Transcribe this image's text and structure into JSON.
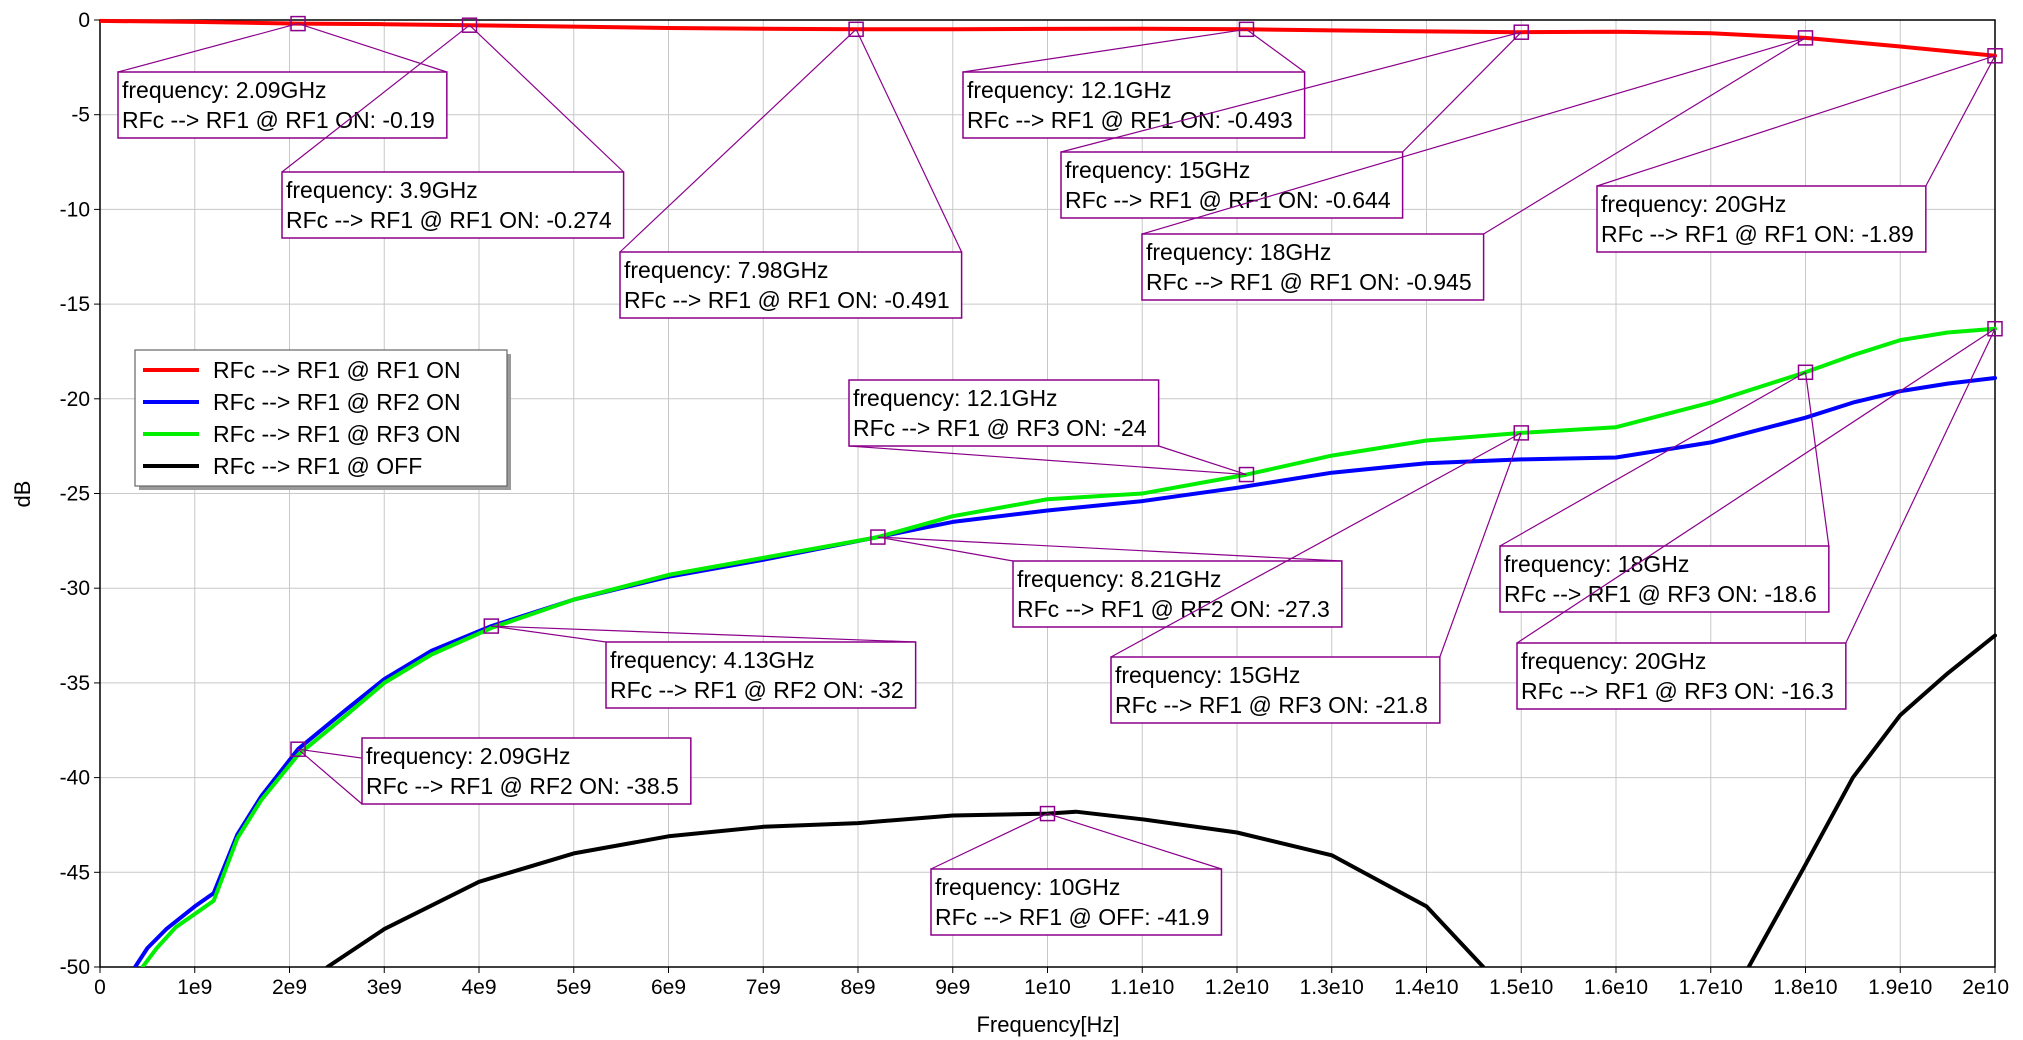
{
  "chart_data": {
    "type": "line",
    "xlabel": "Frequency[Hz]",
    "ylabel": "dB",
    "xlim": [
      0,
      20000000000
    ],
    "ylim": [
      -50,
      0
    ],
    "grid": true,
    "legend_placement": "left",
    "x_ticks": [
      {
        "value": 0,
        "label": "0"
      },
      {
        "value": 1000000000,
        "label": "1e9"
      },
      {
        "value": 2000000000,
        "label": "2e9"
      },
      {
        "value": 3000000000,
        "label": "3e9"
      },
      {
        "value": 4000000000,
        "label": "4e9"
      },
      {
        "value": 5000000000,
        "label": "5e9"
      },
      {
        "value": 6000000000,
        "label": "6e9"
      },
      {
        "value": 7000000000,
        "label": "7e9"
      },
      {
        "value": 8000000000,
        "label": "8e9"
      },
      {
        "value": 9000000000,
        "label": "9e9"
      },
      {
        "value": 10000000000,
        "label": "1e10"
      },
      {
        "value": 11000000000,
        "label": "1.1e10"
      },
      {
        "value": 12000000000,
        "label": "1.2e10"
      },
      {
        "value": 13000000000,
        "label": "1.3e10"
      },
      {
        "value": 14000000000,
        "label": "1.4e10"
      },
      {
        "value": 15000000000,
        "label": "1.5e10"
      },
      {
        "value": 16000000000,
        "label": "1.6e10"
      },
      {
        "value": 17000000000,
        "label": "1.7e10"
      },
      {
        "value": 18000000000,
        "label": "1.8e10"
      },
      {
        "value": 19000000000,
        "label": "1.9e10"
      },
      {
        "value": 20000000000,
        "label": "2e10"
      }
    ],
    "y_ticks": [
      {
        "value": 0,
        "label": "0"
      },
      {
        "value": -5,
        "label": "-5"
      },
      {
        "value": -10,
        "label": "-10"
      },
      {
        "value": -15,
        "label": "-15"
      },
      {
        "value": -20,
        "label": "-20"
      },
      {
        "value": -25,
        "label": "-25"
      },
      {
        "value": -30,
        "label": "-30"
      },
      {
        "value": -35,
        "label": "-35"
      },
      {
        "value": -40,
        "label": "-40"
      },
      {
        "value": -45,
        "label": "-45"
      },
      {
        "value": -50,
        "label": "-50"
      }
    ],
    "series": [
      {
        "name": "RFc --> RF1 @ RF1 ON",
        "color": "#ff0000",
        "points": [
          [
            0,
            -0.05
          ],
          [
            1000000000,
            -0.1
          ],
          [
            2090000000,
            -0.19
          ],
          [
            3000000000,
            -0.22
          ],
          [
            3900000000,
            -0.274
          ],
          [
            5000000000,
            -0.35
          ],
          [
            6000000000,
            -0.42
          ],
          [
            7000000000,
            -0.46
          ],
          [
            7980000000,
            -0.491
          ],
          [
            9000000000,
            -0.49
          ],
          [
            10000000000,
            -0.47
          ],
          [
            11000000000,
            -0.46
          ],
          [
            12100000000,
            -0.493
          ],
          [
            13000000000,
            -0.55
          ],
          [
            14000000000,
            -0.6
          ],
          [
            15000000000,
            -0.644
          ],
          [
            16000000000,
            -0.62
          ],
          [
            17000000000,
            -0.7
          ],
          [
            18000000000,
            -0.945
          ],
          [
            19000000000,
            -1.4
          ],
          [
            20000000000,
            -1.89
          ]
        ]
      },
      {
        "name": "RFc --> RF1 @ RF2 ON",
        "color": "#0000ff",
        "points": [
          [
            370000000,
            -50
          ],
          [
            500000000,
            -49
          ],
          [
            700000000,
            -48
          ],
          [
            1000000000,
            -46.8
          ],
          [
            1200000000,
            -46.1
          ],
          [
            1450000000,
            -43
          ],
          [
            1700000000,
            -41
          ],
          [
            2090000000,
            -38.5
          ],
          [
            2600000000,
            -36.4
          ],
          [
            3000000000,
            -34.8
          ],
          [
            3500000000,
            -33.3
          ],
          [
            4130000000,
            -32
          ],
          [
            5000000000,
            -30.6
          ],
          [
            6000000000,
            -29.4
          ],
          [
            7000000000,
            -28.5
          ],
          [
            8210000000,
            -27.3
          ],
          [
            9000000000,
            -26.5
          ],
          [
            10000000000,
            -25.9
          ],
          [
            11000000000,
            -25.4
          ],
          [
            12000000000,
            -24.7
          ],
          [
            13000000000,
            -23.9
          ],
          [
            14000000000,
            -23.4
          ],
          [
            15000000000,
            -23.2
          ],
          [
            16000000000,
            -23.1
          ],
          [
            17000000000,
            -22.3
          ],
          [
            18000000000,
            -21
          ],
          [
            18500000000,
            -20.2
          ],
          [
            19000000000,
            -19.6
          ],
          [
            19500000000,
            -19.2
          ],
          [
            20000000000,
            -18.9
          ]
        ]
      },
      {
        "name": "RFc --> RF1 @ RF3 ON",
        "color": "#00ee00",
        "points": [
          [
            450000000,
            -50
          ],
          [
            600000000,
            -49
          ],
          [
            800000000,
            -47.9
          ],
          [
            1000000000,
            -47.2
          ],
          [
            1200000000,
            -46.5
          ],
          [
            1450000000,
            -43.2
          ],
          [
            1700000000,
            -41.2
          ],
          [
            2090000000,
            -38.8
          ],
          [
            2600000000,
            -36.7
          ],
          [
            3000000000,
            -35
          ],
          [
            3500000000,
            -33.5
          ],
          [
            4130000000,
            -32.1
          ],
          [
            5000000000,
            -30.6
          ],
          [
            6000000000,
            -29.3
          ],
          [
            7000000000,
            -28.4
          ],
          [
            8210000000,
            -27.3
          ],
          [
            9000000000,
            -26.2
          ],
          [
            10000000000,
            -25.3
          ],
          [
            11000000000,
            -25
          ],
          [
            12100000000,
            -24
          ],
          [
            13000000000,
            -23
          ],
          [
            14000000000,
            -22.2
          ],
          [
            15000000000,
            -21.8
          ],
          [
            16000000000,
            -21.5
          ],
          [
            17000000000,
            -20.2
          ],
          [
            18000000000,
            -18.6
          ],
          [
            18500000000,
            -17.7
          ],
          [
            19000000000,
            -16.9
          ],
          [
            19500000000,
            -16.5
          ],
          [
            20000000000,
            -16.3
          ]
        ]
      },
      {
        "name": "RFc --> RF1 @ OFF",
        "color": "#000000",
        "segments": [
          [
            [
              2400000000,
              -50
            ],
            [
              3000000000,
              -48
            ],
            [
              4000000000,
              -45.5
            ],
            [
              5000000000,
              -44
            ],
            [
              6000000000,
              -43.1
            ],
            [
              7000000000,
              -42.6
            ],
            [
              8000000000,
              -42.4
            ],
            [
              9000000000,
              -42
            ],
            [
              10000000000,
              -41.9
            ],
            [
              10300000000,
              -41.8
            ],
            [
              11000000000,
              -42.2
            ],
            [
              12000000000,
              -42.9
            ],
            [
              13000000000,
              -44.1
            ],
            [
              14000000000,
              -46.8
            ],
            [
              14600000000,
              -50
            ]
          ],
          [
            [
              17400000000,
              -50
            ],
            [
              18000000000,
              -44.6
            ],
            [
              18500000000,
              -40
            ],
            [
              19000000000,
              -36.7
            ],
            [
              19500000000,
              -34.5
            ],
            [
              20000000000,
              -32.5
            ]
          ]
        ]
      }
    ],
    "annotations": [
      {
        "series": 0,
        "x": 2090000000,
        "y": -0.19,
        "line1": "frequency: 2.09GHz",
        "line2": "RFc --> RF1 @ RF1 ON: -0.19"
      },
      {
        "series": 0,
        "x": 3900000000,
        "y": -0.274,
        "line1": "frequency: 3.9GHz",
        "line2": "RFc --> RF1 @ RF1 ON: -0.274"
      },
      {
        "series": 0,
        "x": 7980000000,
        "y": -0.491,
        "line1": "frequency: 7.98GHz",
        "line2": "RFc --> RF1 @ RF1 ON: -0.491"
      },
      {
        "series": 0,
        "x": 12100000000,
        "y": -0.493,
        "line1": "frequency: 12.1GHz",
        "line2": "RFc --> RF1 @ RF1 ON: -0.493"
      },
      {
        "series": 0,
        "x": 15000000000,
        "y": -0.644,
        "line1": "frequency: 15GHz",
        "line2": "RFc --> RF1 @ RF1 ON: -0.644"
      },
      {
        "series": 0,
        "x": 18000000000,
        "y": -0.945,
        "line1": "frequency: 18GHz",
        "line2": "RFc --> RF1 @ RF1 ON: -0.945"
      },
      {
        "series": 0,
        "x": 20000000000,
        "y": -1.89,
        "line1": "frequency: 20GHz",
        "line2": "RFc --> RF1 @ RF1 ON: -1.89"
      },
      {
        "series": 2,
        "x": 12100000000,
        "y": -24,
        "line1": "frequency: 12.1GHz",
        "line2": "RFc --> RF1 @ RF3 ON: -24"
      },
      {
        "series": 1,
        "x": 8210000000,
        "y": -27.3,
        "line1": "frequency: 8.21GHz",
        "line2": "RFc --> RF1 @ RF2 ON: -27.3"
      },
      {
        "series": 1,
        "x": 4130000000,
        "y": -32,
        "line1": "frequency: 4.13GHz",
        "line2": "RFc --> RF1 @ RF2 ON: -32"
      },
      {
        "series": 1,
        "x": 2090000000,
        "y": -38.5,
        "line1": "frequency: 2.09GHz",
        "line2": "RFc --> RF1 @ RF2 ON: -38.5"
      },
      {
        "series": 2,
        "x": 15000000000,
        "y": -21.8,
        "line1": "frequency: 15GHz",
        "line2": "RFc --> RF1 @ RF3 ON: -21.8"
      },
      {
        "series": 2,
        "x": 18000000000,
        "y": -18.6,
        "line1": "frequency: 18GHz",
        "line2": "RFc --> RF1 @ RF3 ON: -18.6"
      },
      {
        "series": 2,
        "x": 20000000000,
        "y": -16.3,
        "line1": "frequency: 20GHz",
        "line2": "RFc --> RF1 @ RF3 ON: -16.3"
      },
      {
        "series": 3,
        "x": 10000000000,
        "y": -41.9,
        "line1": "frequency: 10GHz",
        "line2": "RFc --> RF1 @ OFF: -41.9"
      }
    ],
    "legend": [
      "RFc --> RF1 @ RF1 ON",
      "RFc --> RF1 @ RF2 ON",
      "RFc --> RF1 @ RF3 ON",
      "RFc --> RF1 @ OFF"
    ]
  }
}
